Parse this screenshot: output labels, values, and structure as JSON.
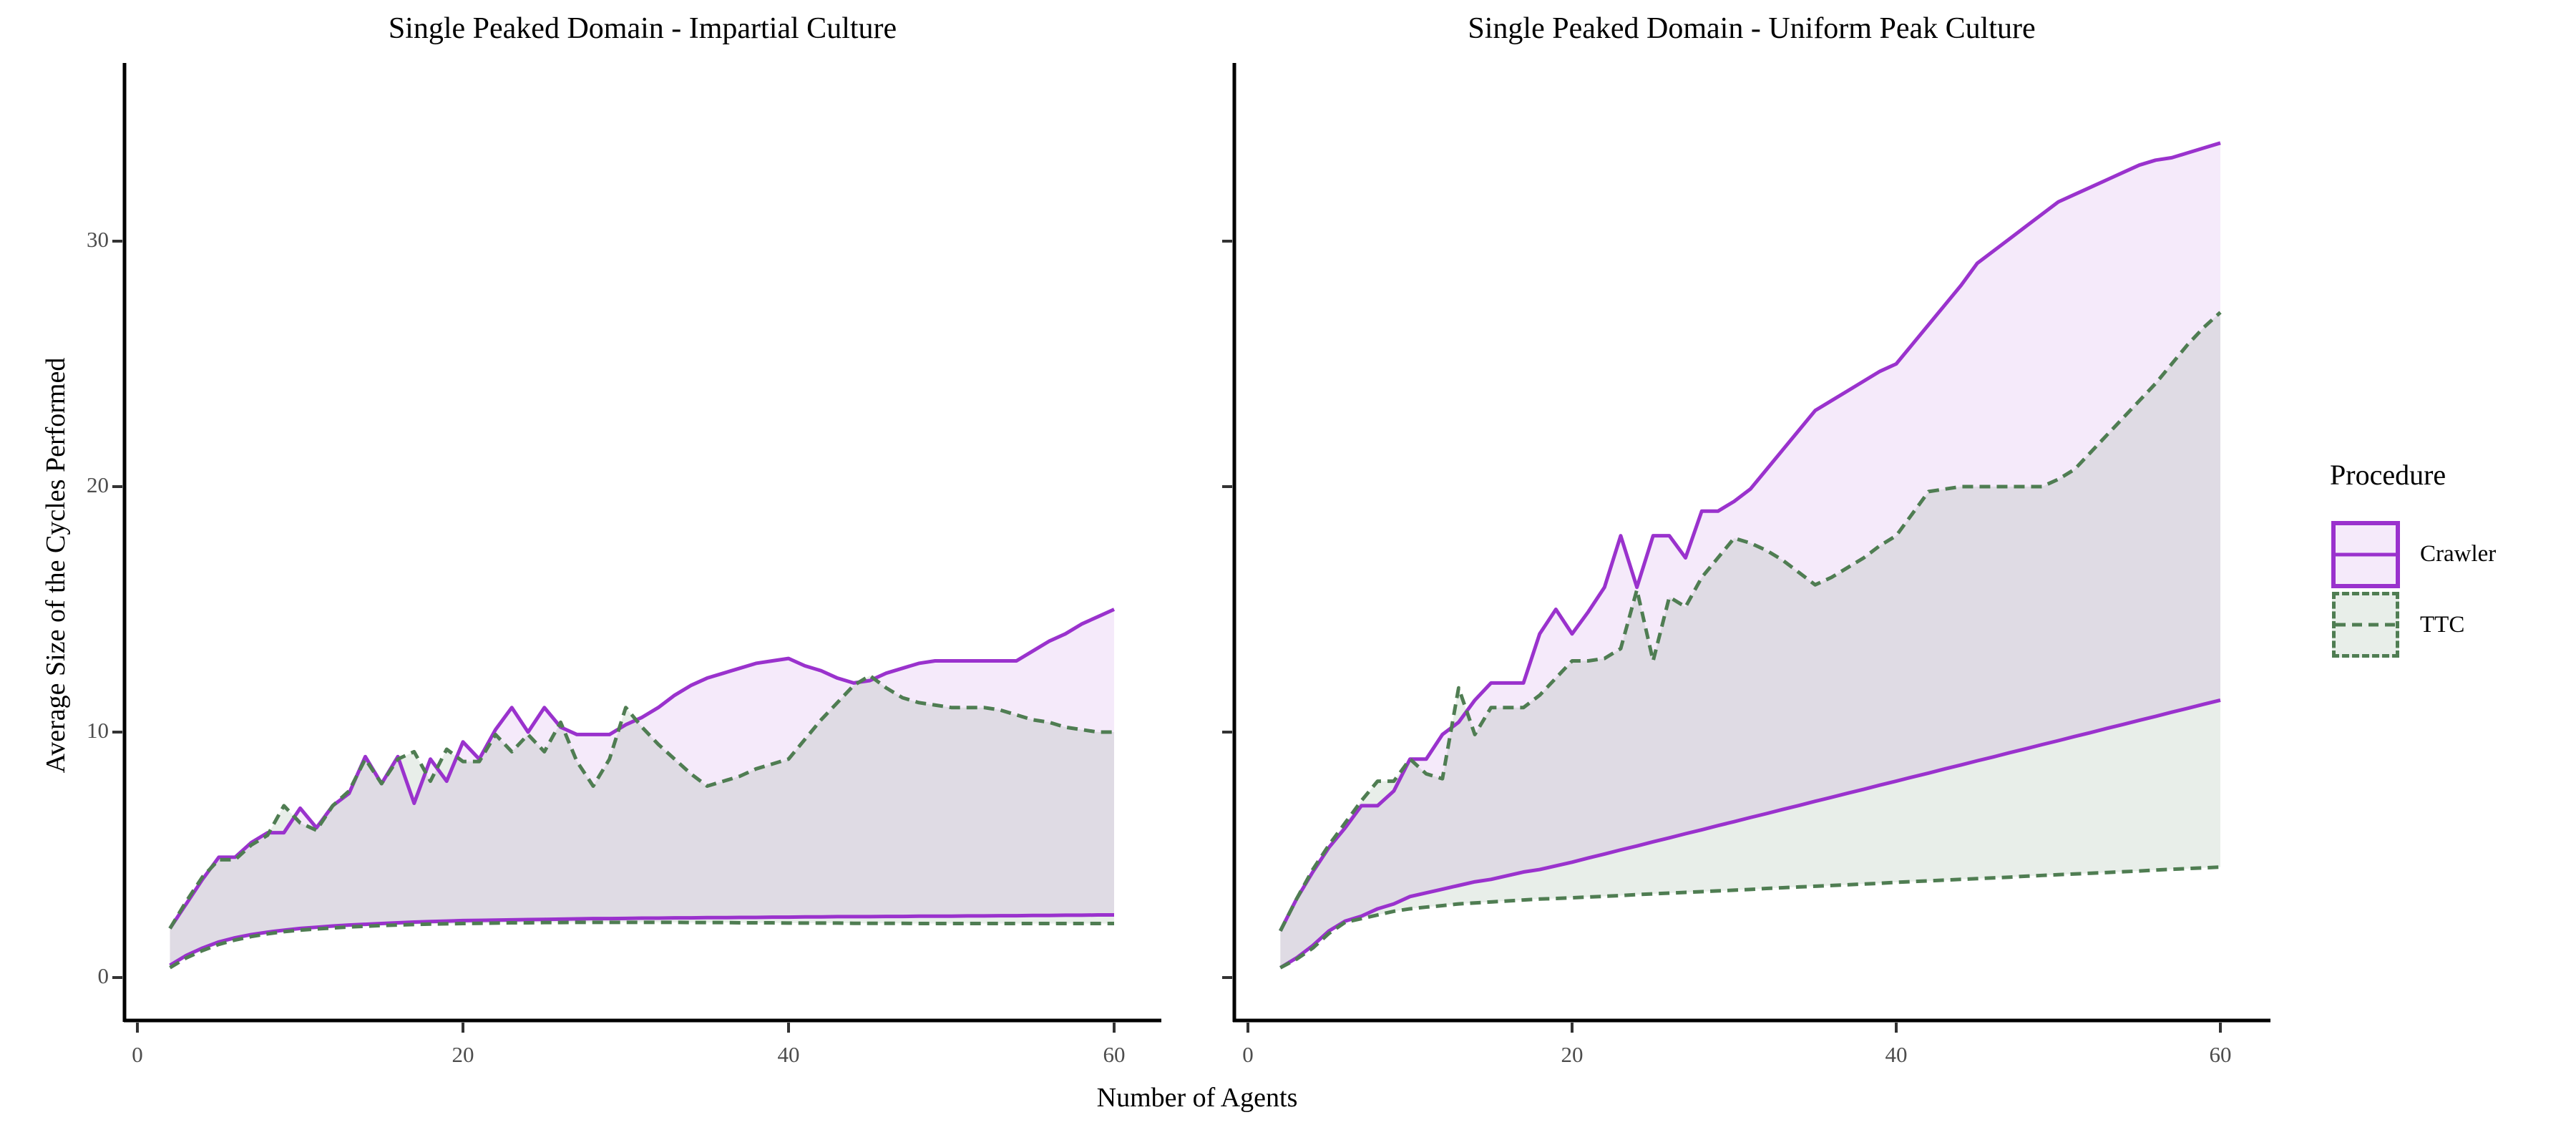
{
  "figure": {
    "x_axis_label": "Number of Agents",
    "y_axis_label": "Average Size of the Cycles Performed",
    "legend": {
      "title": "Procedure",
      "items": [
        {
          "label": "Crawler",
          "line_style": "solid",
          "color": "#9A32CD",
          "fill": "rgba(154,50,205,0.10)"
        },
        {
          "label": "TTC",
          "line_style": "dashed",
          "color": "#4F7D52",
          "fill": "rgba(79,125,82,0.13)"
        }
      ]
    },
    "axis_color": "#000000",
    "tick_color": "#333333",
    "tick_label_color": "#4d4d4d"
  },
  "chart_data": [
    {
      "type": "area",
      "title": "Single Peaked Domain - Impartial Culture",
      "xlabel": "Number of Agents",
      "ylabel": "Average Size of the Cycles Performed",
      "x_ticks": [
        0,
        20,
        40,
        60
      ],
      "y_ticks": [
        0,
        10,
        20,
        30
      ],
      "xlim": [
        -1,
        63
      ],
      "ylim": [
        -1.7,
        36
      ],
      "grid": false,
      "legend_position": "right",
      "x": [
        2,
        3,
        4,
        5,
        6,
        7,
        8,
        9,
        10,
        11,
        12,
        13,
        14,
        15,
        16,
        17,
        18,
        19,
        20,
        21,
        22,
        23,
        24,
        25,
        26,
        27,
        28,
        29,
        30,
        31,
        32,
        33,
        34,
        35,
        36,
        37,
        38,
        39,
        40,
        41,
        42,
        43,
        44,
        45,
        46,
        47,
        48,
        49,
        50,
        51,
        52,
        53,
        54,
        55,
        56,
        57,
        58,
        59,
        60
      ],
      "series": [
        {
          "name": "Crawler",
          "upper": [
            2.0,
            3.0,
            4.0,
            4.9,
            4.9,
            5.5,
            5.9,
            5.9,
            6.9,
            6.1,
            7.0,
            7.5,
            9.0,
            7.9,
            9.0,
            7.1,
            8.9,
            8.0,
            9.6,
            8.9,
            10.1,
            11.0,
            10.0,
            11.0,
            10.2,
            9.9,
            9.9,
            9.9,
            10.3,
            10.6,
            11.0,
            11.5,
            11.9,
            12.2,
            12.4,
            12.6,
            12.8,
            12.9,
            13.0,
            12.7,
            12.5,
            12.2,
            12.0,
            12.1,
            12.4,
            12.6,
            12.8,
            12.9,
            12.9,
            12.9,
            12.9,
            12.9,
            12.9,
            13.3,
            13.7,
            14.0,
            14.4,
            14.7,
            15.0
          ],
          "lower": [
            0.5,
            0.9,
            1.2,
            1.45,
            1.62,
            1.75,
            1.85,
            1.93,
            2.0,
            2.05,
            2.1,
            2.14,
            2.17,
            2.2,
            2.23,
            2.26,
            2.28,
            2.3,
            2.32,
            2.33,
            2.34,
            2.35,
            2.36,
            2.37,
            2.38,
            2.39,
            2.4,
            2.4,
            2.41,
            2.42,
            2.42,
            2.43,
            2.43,
            2.44,
            2.44,
            2.45,
            2.45,
            2.46,
            2.46,
            2.47,
            2.47,
            2.48,
            2.48,
            2.48,
            2.49,
            2.49,
            2.5,
            2.5,
            2.5,
            2.51,
            2.51,
            2.52,
            2.52,
            2.53,
            2.53,
            2.54,
            2.54,
            2.55,
            2.55
          ]
        },
        {
          "name": "TTC",
          "upper": [
            2.0,
            3.1,
            4.1,
            4.8,
            4.8,
            5.4,
            5.8,
            7.0,
            6.3,
            6.0,
            7.0,
            7.6,
            8.9,
            7.9,
            8.9,
            9.2,
            8.0,
            9.3,
            8.8,
            8.8,
            9.9,
            9.2,
            9.9,
            9.2,
            10.4,
            8.8,
            7.8,
            8.9,
            11.0,
            10.2,
            9.5,
            8.9,
            8.3,
            7.8,
            8.0,
            8.2,
            8.5,
            8.7,
            8.9,
            9.7,
            10.5,
            11.2,
            11.9,
            12.3,
            11.8,
            11.4,
            11.2,
            11.1,
            11.0,
            11.0,
            11.0,
            10.9,
            10.7,
            10.5,
            10.4,
            10.2,
            10.1,
            10.0,
            10.0
          ],
          "lower": [
            0.4,
            0.8,
            1.1,
            1.35,
            1.53,
            1.67,
            1.78,
            1.87,
            1.93,
            1.98,
            2.02,
            2.06,
            2.09,
            2.12,
            2.14,
            2.16,
            2.18,
            2.19,
            2.2,
            2.21,
            2.22,
            2.23,
            2.23,
            2.24,
            2.24,
            2.25,
            2.25,
            2.25,
            2.25,
            2.25,
            2.25,
            2.25,
            2.24,
            2.24,
            2.24,
            2.23,
            2.23,
            2.23,
            2.22,
            2.22,
            2.22,
            2.22,
            2.21,
            2.21,
            2.21,
            2.21,
            2.2,
            2.2,
            2.2,
            2.2,
            2.2,
            2.2,
            2.2,
            2.2,
            2.2,
            2.2,
            2.2,
            2.2,
            2.2
          ]
        }
      ]
    },
    {
      "type": "area",
      "title": "Single Peaked Domain - Uniform Peak Culture",
      "xlabel": "Number of Agents",
      "ylabel": "Average Size of the Cycles Performed",
      "x_ticks": [
        0,
        20,
        40,
        60
      ],
      "y_ticks": [
        0,
        10,
        20,
        30
      ],
      "xlim": [
        -1,
        63
      ],
      "ylim": [
        -1.7,
        36
      ],
      "grid": false,
      "legend_position": "right",
      "x": [
        2,
        3,
        4,
        5,
        6,
        7,
        8,
        9,
        10,
        11,
        12,
        13,
        14,
        15,
        16,
        17,
        18,
        19,
        20,
        21,
        22,
        23,
        24,
        25,
        26,
        27,
        28,
        29,
        30,
        31,
        32,
        33,
        34,
        35,
        36,
        37,
        38,
        39,
        40,
        41,
        42,
        43,
        44,
        45,
        46,
        47,
        48,
        49,
        50,
        51,
        52,
        53,
        54,
        55,
        56,
        57,
        58,
        59,
        60
      ],
      "series": [
        {
          "name": "Crawler",
          "upper": [
            1.9,
            3.2,
            4.3,
            5.3,
            6.1,
            7.0,
            7.0,
            7.6,
            8.9,
            8.9,
            9.9,
            10.4,
            11.3,
            12.0,
            12.0,
            12.0,
            14.0,
            15.0,
            14.0,
            14.9,
            15.9,
            18.0,
            15.9,
            18.0,
            18.0,
            17.1,
            19.0,
            19.0,
            19.4,
            19.9,
            20.7,
            21.5,
            22.3,
            23.1,
            23.5,
            23.9,
            24.3,
            24.7,
            25.0,
            25.8,
            26.6,
            27.4,
            28.2,
            29.1,
            29.6,
            30.1,
            30.6,
            31.1,
            31.6,
            31.9,
            32.2,
            32.5,
            32.8,
            33.1,
            33.3,
            33.4,
            33.6,
            33.8,
            34.0
          ],
          "lower": [
            0.4,
            0.8,
            1.3,
            1.9,
            2.3,
            2.5,
            2.8,
            3.0,
            3.3,
            3.45,
            3.6,
            3.75,
            3.9,
            4.0,
            4.15,
            4.3,
            4.4,
            4.55,
            4.7,
            4.87,
            5.03,
            5.2,
            5.36,
            5.53,
            5.69,
            5.86,
            6.02,
            6.19,
            6.35,
            6.52,
            6.68,
            6.85,
            7.01,
            7.18,
            7.34,
            7.51,
            7.67,
            7.84,
            8.0,
            8.17,
            8.33,
            8.5,
            8.66,
            8.83,
            8.99,
            9.16,
            9.32,
            9.49,
            9.65,
            9.82,
            9.98,
            10.15,
            10.31,
            10.48,
            10.64,
            10.81,
            10.97,
            11.14,
            11.3
          ]
        },
        {
          "name": "TTC",
          "upper": [
            1.9,
            3.2,
            4.4,
            5.4,
            6.3,
            7.2,
            8.0,
            8.0,
            8.9,
            8.3,
            8.1,
            11.8,
            9.9,
            11.0,
            11.0,
            11.0,
            11.5,
            12.2,
            12.9,
            12.9,
            13.0,
            13.4,
            15.8,
            12.9,
            15.5,
            15.1,
            16.3,
            17.1,
            17.9,
            17.7,
            17.4,
            17.0,
            16.5,
            16.0,
            16.3,
            16.7,
            17.1,
            17.6,
            18.0,
            18.9,
            19.8,
            19.9,
            20.0,
            20.0,
            20.0,
            20.0,
            20.0,
            20.0,
            20.3,
            20.7,
            21.4,
            22.1,
            22.8,
            23.5,
            24.2,
            25.0,
            25.8,
            26.5,
            27.1
          ],
          "lower": [
            0.4,
            0.75,
            1.2,
            1.8,
            2.25,
            2.4,
            2.55,
            2.7,
            2.8,
            2.87,
            2.93,
            3.0,
            3.04,
            3.08,
            3.12,
            3.16,
            3.2,
            3.22,
            3.25,
            3.28,
            3.31,
            3.34,
            3.38,
            3.41,
            3.44,
            3.47,
            3.5,
            3.53,
            3.56,
            3.59,
            3.63,
            3.66,
            3.69,
            3.72,
            3.75,
            3.78,
            3.81,
            3.84,
            3.88,
            3.91,
            3.94,
            3.97,
            4.0,
            4.03,
            4.06,
            4.09,
            4.13,
            4.16,
            4.19,
            4.22,
            4.25,
            4.28,
            4.31,
            4.34,
            4.38,
            4.41,
            4.44,
            4.47,
            4.5
          ]
        }
      ]
    }
  ]
}
